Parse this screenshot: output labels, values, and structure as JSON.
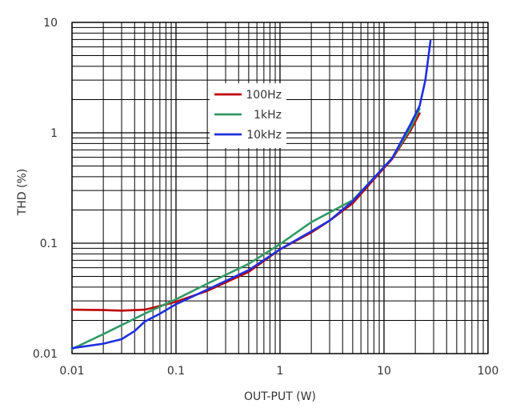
{
  "chart_data": {
    "type": "line",
    "xscale": "log",
    "yscale": "log",
    "xlim": [
      0.01,
      100
    ],
    "ylim": [
      0.01,
      10
    ],
    "xlabel": "OUT-PUT (W)",
    "ylabel": "THD (%)",
    "x_ticks": [
      "0.01",
      "0.1",
      "1",
      "10",
      "100"
    ],
    "y_ticks": [
      "0.01",
      "0.1",
      "1",
      "10"
    ],
    "grid": true,
    "legend_position": "upper-middle",
    "series": [
      {
        "name": "100Hz",
        "color": "#c00000",
        "points": [
          [
            0.01,
            0.025
          ],
          [
            0.02,
            0.0248
          ],
          [
            0.03,
            0.0245
          ],
          [
            0.05,
            0.025
          ],
          [
            0.07,
            0.027
          ],
          [
            0.1,
            0.0295
          ],
          [
            0.2,
            0.037
          ],
          [
            0.5,
            0.055
          ],
          [
            1,
            0.088
          ],
          [
            2,
            0.125
          ],
          [
            3,
            0.16
          ],
          [
            5,
            0.23
          ],
          [
            8,
            0.38
          ],
          [
            12,
            0.58
          ],
          [
            18,
            1.05
          ],
          [
            22,
            1.5
          ]
        ]
      },
      {
        "name": "1kHz",
        "color": "#339966",
        "points": [
          [
            0.01,
            0.011
          ],
          [
            0.02,
            0.015
          ],
          [
            0.05,
            0.023
          ],
          [
            0.1,
            0.031
          ],
          [
            0.2,
            0.043
          ],
          [
            0.5,
            0.065
          ],
          [
            1,
            0.098
          ],
          [
            2,
            0.155
          ],
          [
            5,
            0.245
          ],
          [
            8,
            0.39
          ],
          [
            12,
            0.59
          ],
          [
            18,
            1.1
          ],
          [
            22,
            1.65
          ]
        ]
      },
      {
        "name": "10kHz",
        "color": "#1f2fe0",
        "points": [
          [
            0.01,
            0.0112
          ],
          [
            0.02,
            0.0123
          ],
          [
            0.03,
            0.0135
          ],
          [
            0.04,
            0.016
          ],
          [
            0.05,
            0.0195
          ],
          [
            0.07,
            0.023
          ],
          [
            0.1,
            0.028
          ],
          [
            0.2,
            0.038
          ],
          [
            0.5,
            0.057
          ],
          [
            1,
            0.088
          ],
          [
            2,
            0.128
          ],
          [
            3,
            0.16
          ],
          [
            5,
            0.24
          ],
          [
            8,
            0.39
          ],
          [
            12,
            0.59
          ],
          [
            18,
            1.2
          ],
          [
            22,
            1.75
          ],
          [
            25,
            3.0
          ],
          [
            28,
            6.8
          ]
        ]
      }
    ]
  }
}
